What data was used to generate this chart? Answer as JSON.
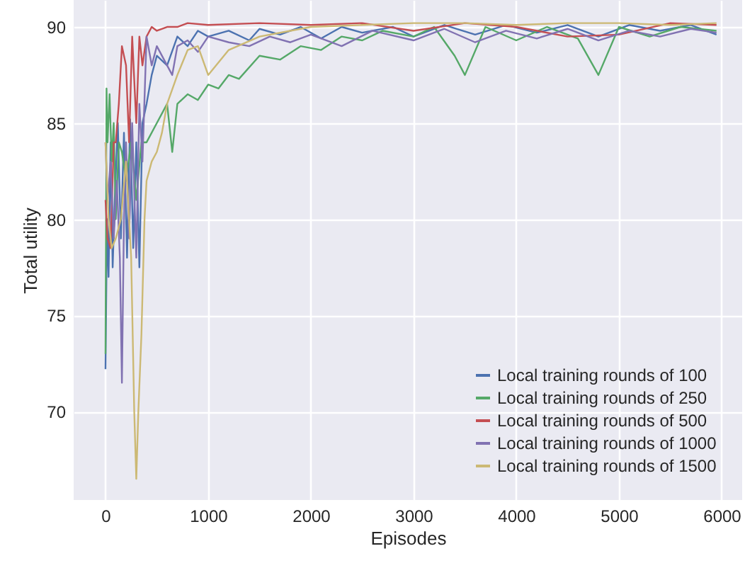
{
  "chart_data": {
    "type": "line",
    "xlabel": "Episodes",
    "ylabel": "Total utility",
    "xlim": [
      -310,
      6200
    ],
    "ylim": [
      65.4,
      91.4
    ],
    "xticks": [
      0,
      1000,
      2000,
      3000,
      4000,
      5000,
      6000
    ],
    "yticks": [
      70,
      75,
      80,
      85,
      90
    ],
    "grid": true,
    "legend": "bottom right",
    "series": [
      {
        "name": "Local training rounds of 100",
        "color": "#4c72b0",
        "x": [
          0,
          15,
          30,
          50,
          70,
          90,
          120,
          150,
          180,
          210,
          240,
          270,
          300,
          330,
          360,
          400,
          450,
          500,
          600,
          700,
          800,
          900,
          1000,
          1200,
          1400,
          1500,
          1700,
          1900,
          2100,
          2300,
          2500,
          2800,
          3000,
          3300,
          3600,
          3900,
          4200,
          4500,
          4800,
          5100,
          5400,
          5700,
          5950
        ],
        "values": [
          72.2,
          80,
          77,
          84,
          77.5,
          81,
          85,
          79,
          84.5,
          78,
          85.2,
          78.5,
          84,
          77.5,
          85,
          86,
          87.5,
          88.5,
          88,
          89.5,
          89,
          89.8,
          89.5,
          89.8,
          89.3,
          89.9,
          89.6,
          90,
          89.4,
          90,
          89.7,
          90,
          89.5,
          90.1,
          89.6,
          90.1,
          89.7,
          90.1,
          89.5,
          90.1,
          89.8,
          90.1,
          89.6
        ]
      },
      {
        "name": "Local training rounds of 250",
        "color": "#55a868",
        "x": [
          0,
          10,
          20,
          40,
          60,
          80,
          100,
          130,
          160,
          200,
          250,
          300,
          350,
          400,
          500,
          600,
          650,
          700,
          800,
          900,
          1000,
          1100,
          1200,
          1300,
          1500,
          1700,
          1900,
          2100,
          2300,
          2500,
          2700,
          3000,
          3200,
          3400,
          3500,
          3700,
          4000,
          4300,
          4600,
          4800,
          5000,
          5300,
          5600,
          5950
        ],
        "values": [
          73,
          86.8,
          84,
          86.5,
          83,
          85,
          80,
          84,
          83.5,
          82,
          84,
          81,
          84,
          84,
          85,
          86,
          83.5,
          86,
          86.5,
          86.2,
          87,
          86.8,
          87.5,
          87.3,
          88.5,
          88.3,
          89,
          88.8,
          89.5,
          89.3,
          89.8,
          89.5,
          90,
          88.5,
          87.5,
          90,
          89.3,
          90,
          89.4,
          87.5,
          90,
          89.5,
          90,
          89.8
        ]
      },
      {
        "name": "Local training rounds of 500",
        "color": "#c44e52",
        "x": [
          0,
          20,
          50,
          80,
          100,
          130,
          160,
          200,
          230,
          260,
          300,
          330,
          360,
          400,
          450,
          500,
          600,
          700,
          800,
          1000,
          1500,
          2000,
          2500,
          3000,
          3500,
          4000,
          4500,
          5000,
          5500,
          5950
        ],
        "values": [
          81,
          79,
          78.5,
          84,
          84,
          86,
          89,
          88,
          84,
          89.5,
          85,
          89.5,
          88,
          89.5,
          90,
          89.8,
          90,
          90,
          90.2,
          90.1,
          90.2,
          90.1,
          90.2,
          89.8,
          90.2,
          90,
          89.5,
          89.6,
          90.2,
          90.1
        ]
      },
      {
        "name": "Local training rounds of 1000",
        "color": "#8172b2",
        "x": [
          0,
          20,
          50,
          80,
          110,
          140,
          160,
          180,
          200,
          230,
          260,
          300,
          330,
          360,
          400,
          450,
          500,
          600,
          650,
          700,
          800,
          900,
          1000,
          1200,
          1400,
          1600,
          1800,
          2000,
          2300,
          2600,
          3000,
          3300,
          3600,
          3900,
          4200,
          4500,
          4800,
          5100,
          5400,
          5700,
          5950
        ],
        "values": [
          84,
          81,
          83,
          79,
          82,
          78,
          71.5,
          80,
          84,
          79,
          85,
          78,
          86,
          83,
          89.5,
          88,
          89,
          88,
          87.5,
          89,
          89.3,
          88.7,
          89.5,
          89.2,
          89,
          89.5,
          89.2,
          89.6,
          89,
          89.8,
          89.3,
          89.9,
          89.2,
          89.8,
          89.4,
          89.9,
          89.3,
          89.8,
          89.5,
          89.9,
          89.7
        ]
      },
      {
        "name": "Local training rounds of 1500",
        "color": "#ccb974",
        "x": [
          0,
          30,
          60,
          100,
          150,
          200,
          250,
          280,
          300,
          320,
          350,
          380,
          400,
          450,
          500,
          550,
          600,
          700,
          800,
          900,
          1000,
          1200,
          1500,
          1800,
          2000,
          2500,
          3000,
          3500,
          4000,
          4500,
          5000,
          5500,
          5950
        ],
        "values": [
          84,
          80,
          78.5,
          79,
          80,
          83,
          78,
          70,
          66.5,
          70,
          74,
          80,
          82,
          83,
          83.5,
          84.5,
          86,
          87.5,
          88.8,
          89,
          87.5,
          88.8,
          89.5,
          89.8,
          90,
          90.1,
          90.2,
          90.2,
          90.1,
          90.2,
          90.2,
          90.1,
          90.2
        ]
      }
    ]
  }
}
